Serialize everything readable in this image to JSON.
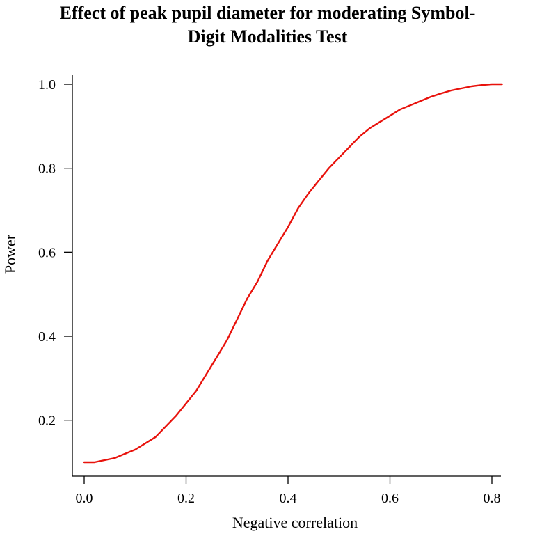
{
  "chart_data": {
    "type": "line",
    "title": "Effect of peak pupil diameter for moderating Symbol-Digit Modalities Test",
    "title_lines": [
      "Effect of peak pupil diameter for moderating Symbol-",
      "Digit Modalities Test"
    ],
    "xlabel": "Negative correlation",
    "ylabel": "Power",
    "xlim": [
      0.0,
      0.8
    ],
    "ylim": [
      0.1,
      1.0
    ],
    "x_ticks": [
      0.0,
      0.2,
      0.4,
      0.6,
      0.8
    ],
    "x_tick_labels": [
      "0.0",
      "0.2",
      "0.4",
      "0.6",
      "0.8"
    ],
    "y_ticks": [
      0.2,
      0.4,
      0.6,
      0.8,
      1.0
    ],
    "y_tick_labels": [
      "0.2",
      "0.4",
      "0.6",
      "0.8",
      "1.0"
    ],
    "grid": false,
    "series": [
      {
        "name": "Power",
        "color": "#e8120c",
        "x": [
          0.0,
          0.02,
          0.04,
          0.06,
          0.08,
          0.1,
          0.12,
          0.14,
          0.16,
          0.18,
          0.2,
          0.22,
          0.24,
          0.26,
          0.28,
          0.3,
          0.32,
          0.34,
          0.36,
          0.38,
          0.4,
          0.42,
          0.44,
          0.46,
          0.48,
          0.5,
          0.52,
          0.54,
          0.56,
          0.58,
          0.6,
          0.62,
          0.64,
          0.66,
          0.68,
          0.7,
          0.72,
          0.74,
          0.76,
          0.78,
          0.8,
          0.82
        ],
        "y": [
          0.1,
          0.1,
          0.105,
          0.11,
          0.12,
          0.13,
          0.145,
          0.16,
          0.185,
          0.21,
          0.24,
          0.27,
          0.31,
          0.35,
          0.39,
          0.44,
          0.49,
          0.53,
          0.58,
          0.62,
          0.66,
          0.705,
          0.74,
          0.77,
          0.8,
          0.825,
          0.85,
          0.875,
          0.895,
          0.91,
          0.925,
          0.94,
          0.95,
          0.96,
          0.97,
          0.978,
          0.985,
          0.99,
          0.995,
          0.998,
          1.0,
          1.0
        ]
      }
    ]
  }
}
